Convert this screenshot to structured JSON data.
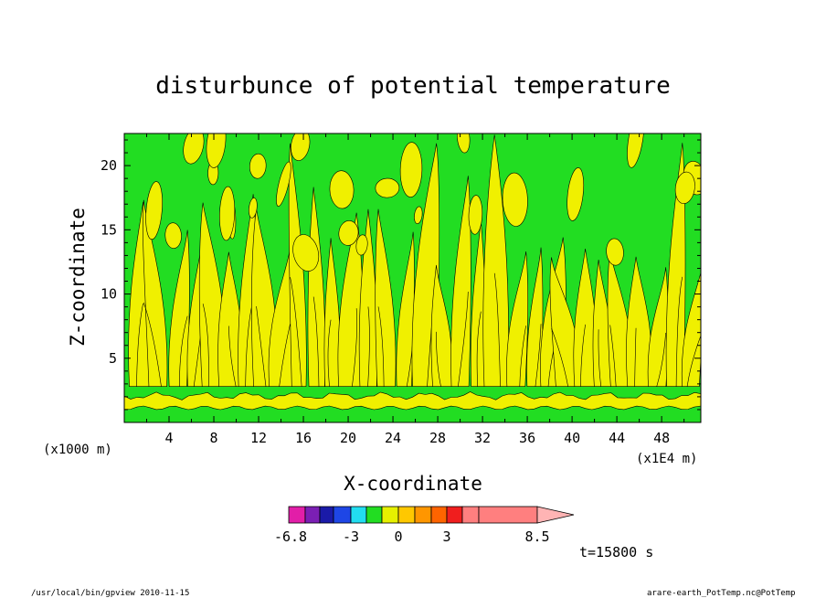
{
  "chart_data": {
    "type": "heatmap",
    "title": "disturbunce of potential temperature",
    "xlabel": "X-coordinate",
    "ylabel": "Z-coordinate",
    "x_unit_left": "(x1000 m)",
    "x_unit_right": "(x1E4 m)",
    "xticks": [
      "4",
      "8",
      "12",
      "16",
      "20",
      "24",
      "28",
      "32",
      "36",
      "40",
      "44",
      "48"
    ],
    "yticks": [
      "5",
      "10",
      "15",
      "20"
    ],
    "xlim": [
      0,
      51.5
    ],
    "ylim": [
      0,
      22.5
    ],
    "colorbar": {
      "colors": [
        "#e21ea8",
        "#7b1fb4",
        "#1a1aa8",
        "#1e46e6",
        "#22ddf0",
        "#22dd22",
        "#e6f000",
        "#ffc800",
        "#ff9600",
        "#ff6400",
        "#f01e1e",
        "#ff7f7f",
        "#ffb4b4"
      ],
      "labels": [
        "-6.8",
        "-3",
        "0",
        "3",
        "8.5"
      ]
    },
    "fill_colors": {
      "green": "#22dd22",
      "yellow": "#f0f000"
    },
    "time_label": "t=15800 s",
    "footer_left": "/usr/local/bin/gpview   2010-11-15",
    "footer_right": "arare-earth_PotTemp.nc@PotTemp"
  }
}
